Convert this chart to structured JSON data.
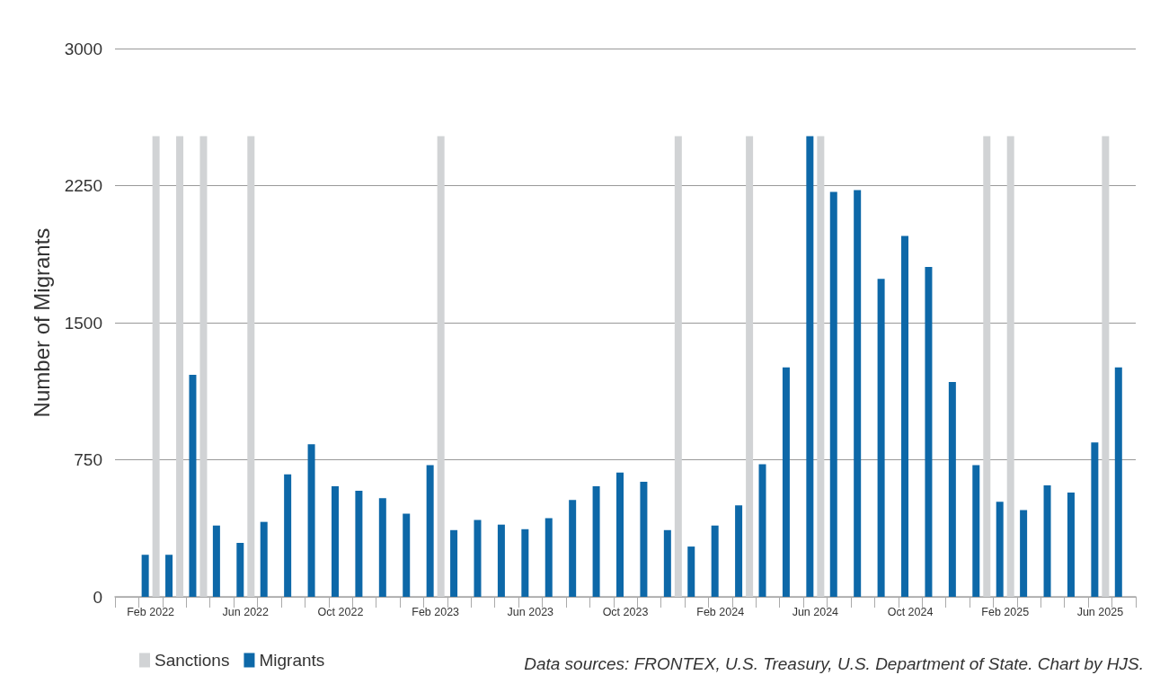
{
  "chart_data": {
    "type": "bar",
    "ylabel": "Number of Migrants",
    "categories": [
      null,
      "Feb 2022",
      null,
      null,
      null,
      "Jun 2022",
      null,
      null,
      null,
      "Oct 2022",
      null,
      null,
      null,
      "Feb 2023",
      null,
      null,
      null,
      "Jun 2023",
      null,
      null,
      null,
      "Oct 2023",
      null,
      null,
      null,
      "Feb 2024",
      null,
      null,
      null,
      "Jun 2024",
      null,
      null,
      null,
      "Oct 2024",
      null,
      null,
      null,
      "Feb 2025",
      null,
      null,
      null,
      "Jun 2025",
      null
    ],
    "series": [
      {
        "name": "Migrants",
        "color": "#0d68a8",
        "values": [
          null,
          230,
          230,
          1215,
          390,
          295,
          410,
          670,
          835,
          605,
          580,
          540,
          455,
          720,
          365,
          420,
          395,
          370,
          430,
          530,
          605,
          680,
          630,
          365,
          275,
          390,
          500,
          725,
          1255,
          2520,
          2215,
          2225,
          1740,
          1975,
          1805,
          1175,
          720,
          520,
          475,
          610,
          570,
          845,
          1255
        ]
      },
      {
        "name": "Sanctions",
        "color": "#d1d3d5",
        "values": [
          null,
          2520,
          2520,
          2520,
          null,
          2520,
          null,
          null,
          null,
          null,
          null,
          null,
          null,
          2520,
          null,
          null,
          null,
          null,
          null,
          null,
          null,
          null,
          null,
          2520,
          null,
          null,
          2520,
          null,
          null,
          2520,
          null,
          null,
          null,
          null,
          null,
          null,
          2520,
          2520,
          null,
          null,
          null,
          2520,
          null
        ]
      }
    ],
    "ylim": [
      0,
      3000
    ],
    "yticks": [
      0,
      750,
      1500,
      2250,
      3000
    ],
    "grid": "y",
    "legend": "bottom left",
    "annotations": [
      "Data sources: FRONTEX, U.S. Treasury, U.S. Department of State. Chart by HJS."
    ]
  }
}
